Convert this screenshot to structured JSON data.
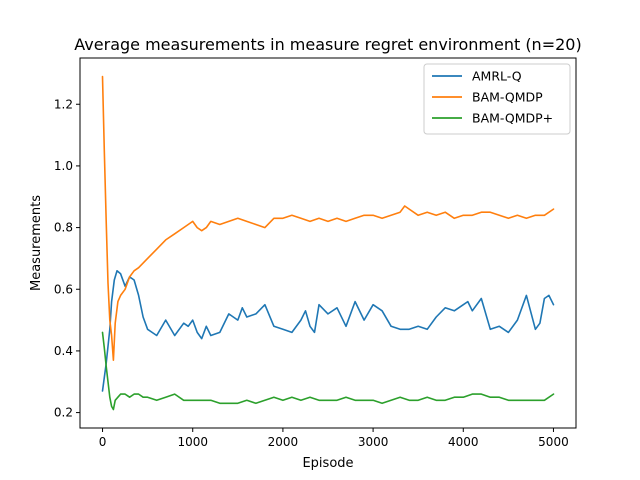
{
  "chart_data": {
    "type": "line",
    "title": "Average measurements in measure regret environment (n=20)",
    "xlabel": "Episode",
    "ylabel": "Measurements",
    "xlim": [
      -250,
      5250
    ],
    "ylim": [
      0.15,
      1.35
    ],
    "xticks": [
      0,
      1000,
      2000,
      3000,
      4000,
      5000
    ],
    "xtick_labels": [
      "0",
      "1000",
      "2000",
      "3000",
      "4000",
      "5000"
    ],
    "yticks": [
      0.2,
      0.4,
      0.6,
      0.8,
      1.0,
      1.2
    ],
    "ytick_labels": [
      "0.2",
      "0.4",
      "0.6",
      "0.8",
      "1.0",
      "1.2"
    ],
    "grid": false,
    "legend_position": "top-right",
    "series": [
      {
        "name": "AMRL-Q",
        "color": "#1f77b4",
        "x": [
          0,
          40,
          80,
          100,
          130,
          160,
          200,
          250,
          300,
          350,
          400,
          450,
          500,
          550,
          600,
          700,
          800,
          900,
          950,
          1000,
          1050,
          1100,
          1150,
          1200,
          1300,
          1400,
          1500,
          1550,
          1600,
          1700,
          1800,
          1900,
          2000,
          2100,
          2200,
          2250,
          2300,
          2350,
          2400,
          2500,
          2600,
          2700,
          2800,
          2900,
          3000,
          3100,
          3200,
          3300,
          3400,
          3500,
          3600,
          3700,
          3800,
          3900,
          4000,
          4050,
          4100,
          4200,
          4300,
          4400,
          4500,
          4600,
          4700,
          4800,
          4850,
          4900,
          4950,
          5000
        ],
        "y": [
          0.27,
          0.36,
          0.47,
          0.56,
          0.63,
          0.66,
          0.65,
          0.61,
          0.64,
          0.63,
          0.58,
          0.51,
          0.47,
          0.46,
          0.45,
          0.5,
          0.45,
          0.49,
          0.48,
          0.5,
          0.46,
          0.44,
          0.48,
          0.45,
          0.46,
          0.52,
          0.5,
          0.54,
          0.51,
          0.52,
          0.55,
          0.48,
          0.47,
          0.46,
          0.5,
          0.53,
          0.48,
          0.46,
          0.55,
          0.52,
          0.54,
          0.48,
          0.56,
          0.5,
          0.55,
          0.53,
          0.48,
          0.47,
          0.47,
          0.48,
          0.47,
          0.51,
          0.54,
          0.53,
          0.55,
          0.56,
          0.53,
          0.57,
          0.47,
          0.48,
          0.46,
          0.5,
          0.58,
          0.47,
          0.49,
          0.57,
          0.58,
          0.55
        ]
      },
      {
        "name": "BAM-QMDP",
        "color": "#ff7f0e",
        "x": [
          0,
          20,
          40,
          60,
          80,
          100,
          120,
          140,
          170,
          200,
          250,
          300,
          350,
          400,
          500,
          600,
          700,
          800,
          900,
          1000,
          1050,
          1100,
          1150,
          1200,
          1300,
          1400,
          1500,
          1600,
          1700,
          1800,
          1900,
          2000,
          2100,
          2200,
          2300,
          2400,
          2500,
          2600,
          2700,
          2800,
          2900,
          3000,
          3100,
          3200,
          3300,
          3350,
          3400,
          3500,
          3600,
          3700,
          3800,
          3900,
          4000,
          4100,
          4200,
          4300,
          4400,
          4500,
          4600,
          4700,
          4800,
          4900,
          5000
        ],
        "y": [
          1.29,
          1.05,
          0.82,
          0.62,
          0.5,
          0.45,
          0.37,
          0.49,
          0.56,
          0.58,
          0.6,
          0.64,
          0.66,
          0.67,
          0.7,
          0.73,
          0.76,
          0.78,
          0.8,
          0.82,
          0.8,
          0.79,
          0.8,
          0.82,
          0.81,
          0.82,
          0.83,
          0.82,
          0.81,
          0.8,
          0.83,
          0.83,
          0.84,
          0.83,
          0.82,
          0.83,
          0.82,
          0.83,
          0.82,
          0.83,
          0.84,
          0.84,
          0.83,
          0.84,
          0.85,
          0.87,
          0.86,
          0.84,
          0.85,
          0.84,
          0.85,
          0.83,
          0.84,
          0.84,
          0.85,
          0.85,
          0.84,
          0.83,
          0.84,
          0.83,
          0.84,
          0.84,
          0.86
        ]
      },
      {
        "name": "BAM-QMDP+",
        "color": "#2ca02c",
        "x": [
          0,
          20,
          40,
          60,
          80,
          100,
          120,
          140,
          170,
          200,
          250,
          300,
          350,
          400,
          450,
          500,
          600,
          700,
          800,
          900,
          1000,
          1100,
          1200,
          1300,
          1400,
          1500,
          1600,
          1700,
          1800,
          1900,
          2000,
          2100,
          2200,
          2300,
          2400,
          2500,
          2600,
          2700,
          2800,
          2900,
          3000,
          3100,
          3200,
          3300,
          3400,
          3500,
          3600,
          3700,
          3800,
          3900,
          4000,
          4100,
          4200,
          4300,
          4400,
          4500,
          4600,
          4700,
          4800,
          4900,
          5000
        ],
        "y": [
          0.46,
          0.41,
          0.35,
          0.3,
          0.25,
          0.22,
          0.21,
          0.24,
          0.25,
          0.26,
          0.26,
          0.25,
          0.26,
          0.26,
          0.25,
          0.25,
          0.24,
          0.25,
          0.26,
          0.24,
          0.24,
          0.24,
          0.24,
          0.23,
          0.23,
          0.23,
          0.24,
          0.23,
          0.24,
          0.25,
          0.24,
          0.25,
          0.24,
          0.25,
          0.24,
          0.24,
          0.24,
          0.25,
          0.24,
          0.24,
          0.24,
          0.23,
          0.24,
          0.25,
          0.24,
          0.24,
          0.25,
          0.24,
          0.24,
          0.25,
          0.25,
          0.26,
          0.26,
          0.25,
          0.25,
          0.24,
          0.24,
          0.24,
          0.24,
          0.24,
          0.26
        ]
      }
    ]
  }
}
